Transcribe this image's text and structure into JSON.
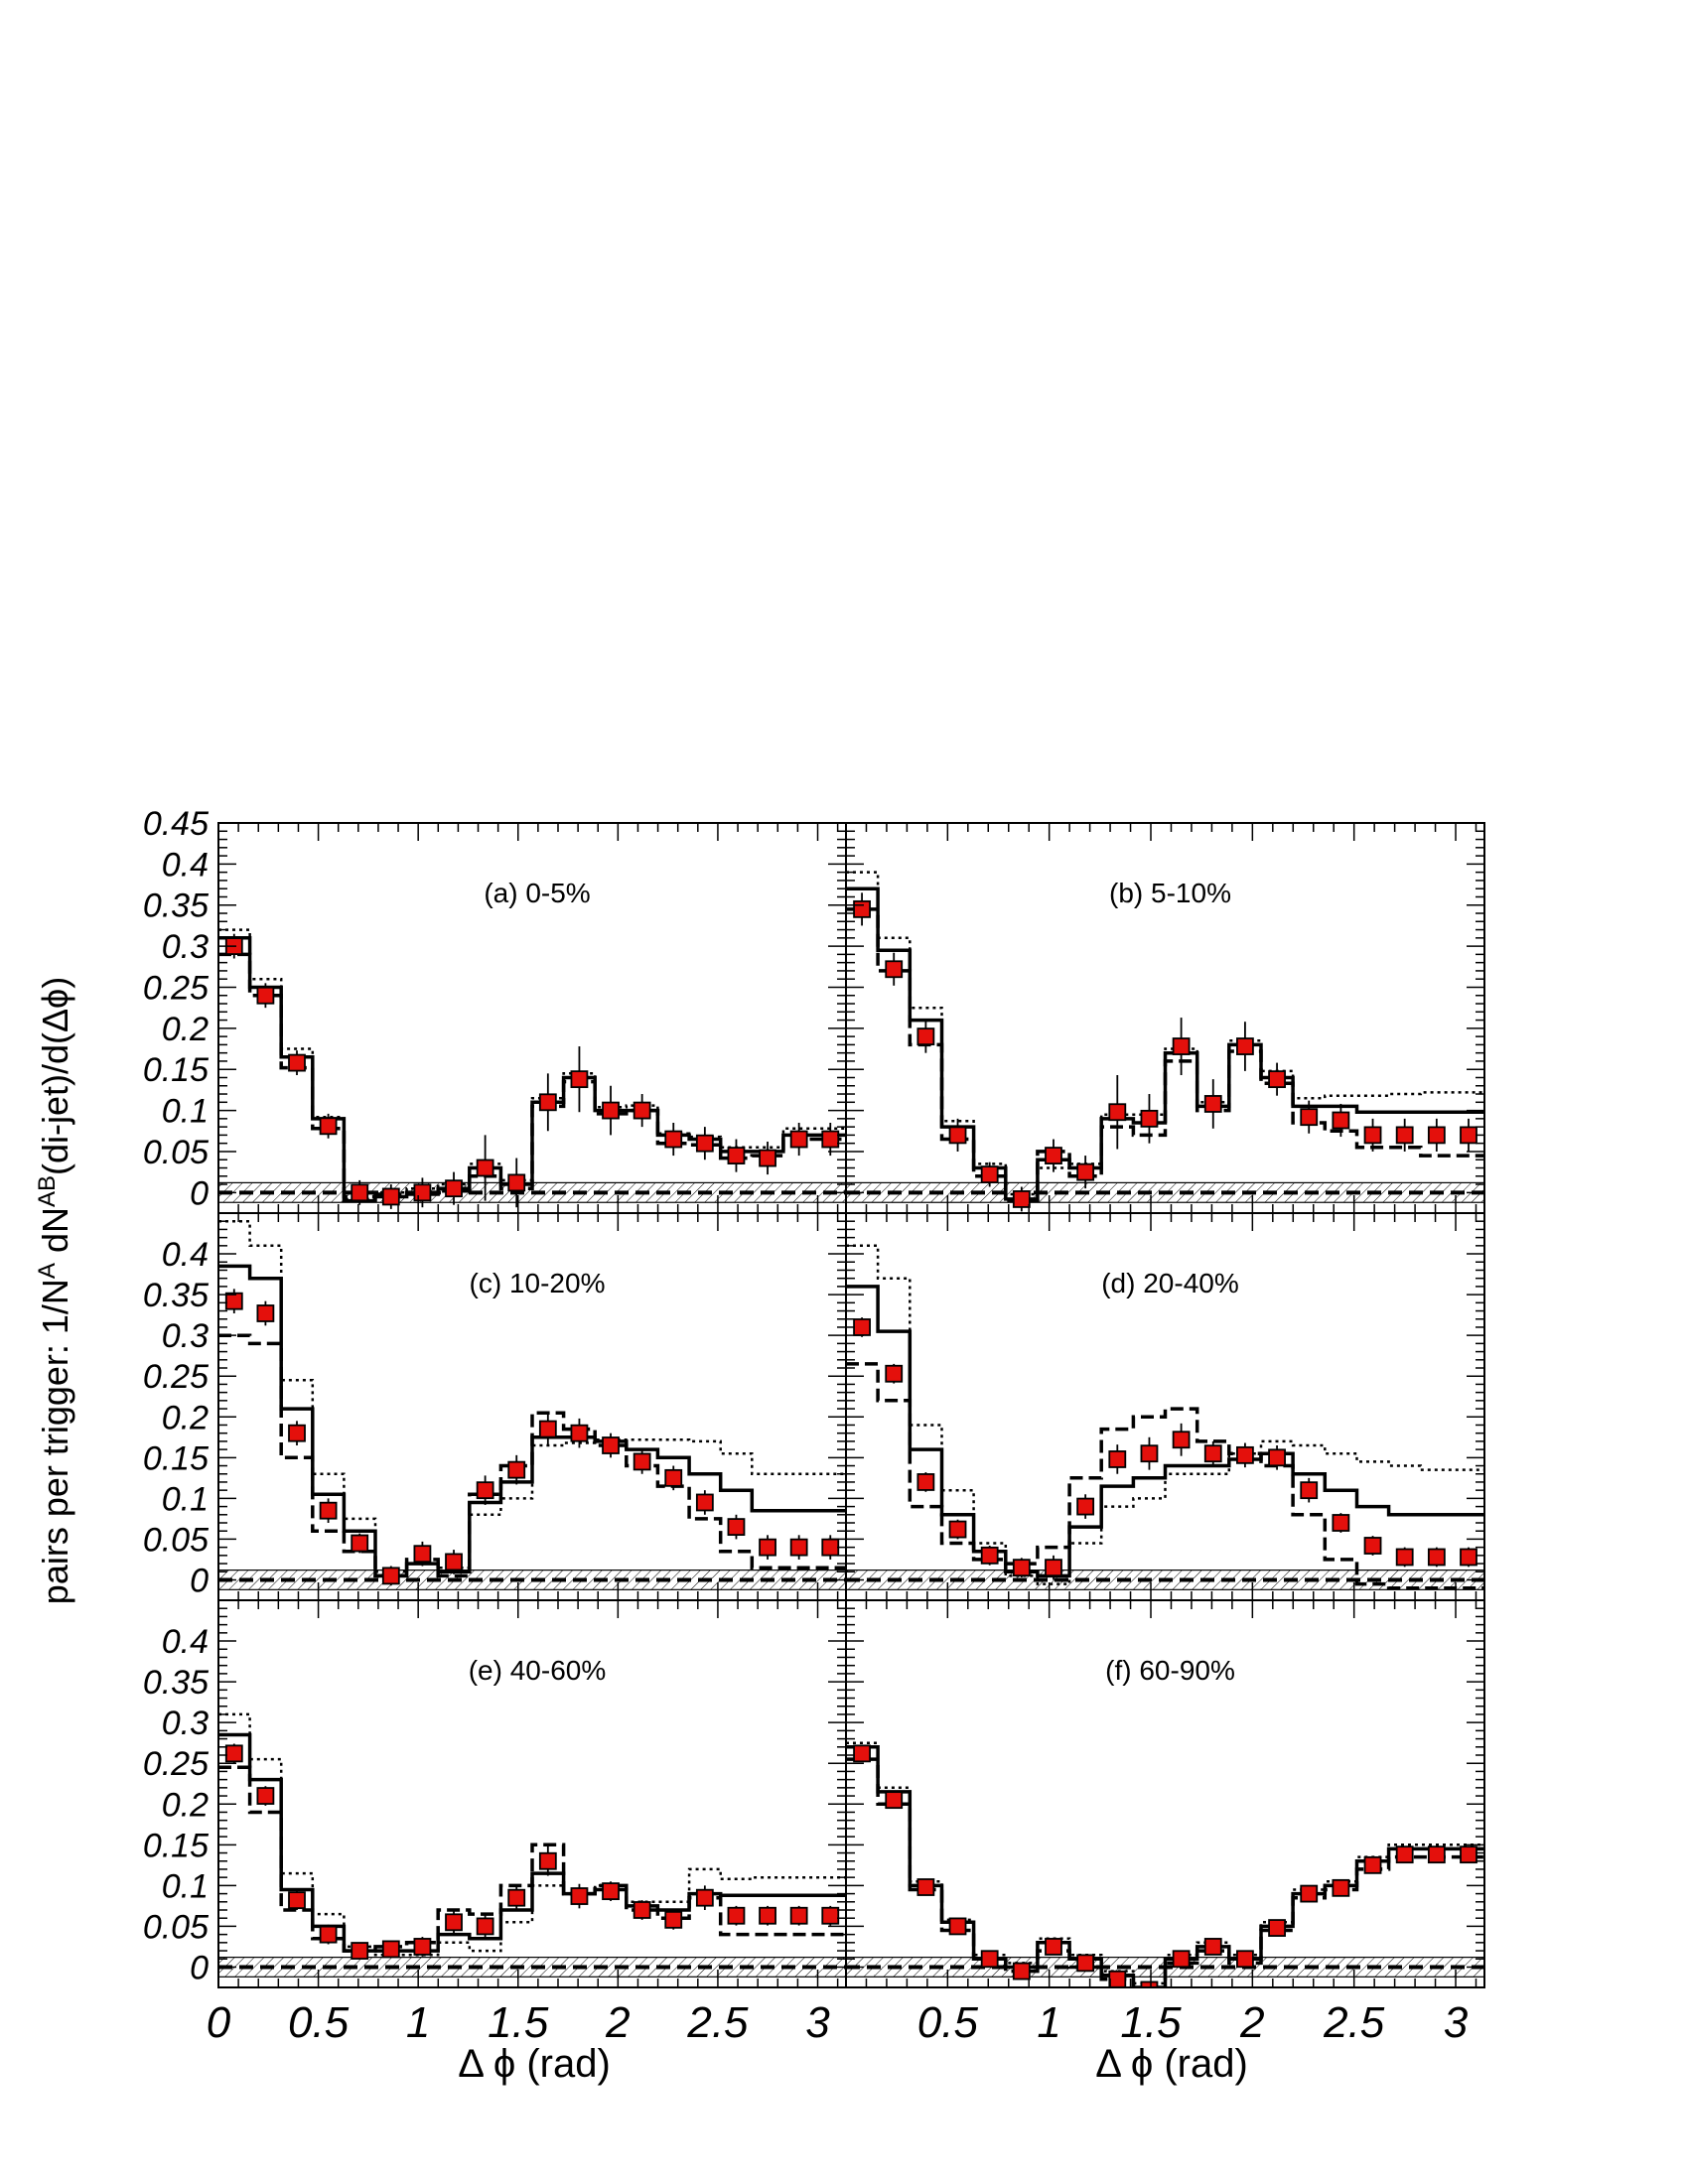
{
  "figure": {
    "ylabel": "pairs per trigger: 1/N",
    "ylabel_sup1": "A",
    "ylabel_mid": " dN",
    "ylabel_sup2": "AB",
    "ylabel_end": "(di-jet)/d(Δϕ)",
    "xlabel": "Δ ϕ (rad)",
    "x_ticks": [
      "0",
      "0.5",
      "1",
      "1.5",
      "2",
      "2.5",
      "3"
    ],
    "x_ticks_right": [
      "0.5",
      "1",
      "1.5",
      "2",
      "2.5",
      "3"
    ],
    "y_ticks_top": [
      "0.45",
      "0.4",
      "0.35",
      "0.3",
      "0.25",
      "0.2",
      "0.15",
      "0.1",
      "0.05",
      "0"
    ],
    "y_ticks": [
      "0.4",
      "0.35",
      "0.3",
      "0.25",
      "0.2",
      "0.15",
      "0.1",
      "0.05",
      "0"
    ],
    "colors": {
      "marker": "#e4100c",
      "line": "#000000"
    }
  },
  "chart_data": [
    {
      "type": "scatter",
      "label": "(a) 0-5%",
      "xlim": [
        0,
        3.14159
      ],
      "ylim": [
        -0.025,
        0.45
      ],
      "x": [
        0.0785,
        0.2356,
        0.3927,
        0.5498,
        0.7069,
        0.864,
        1.0211,
        1.1782,
        1.3353,
        1.4924,
        1.6495,
        1.8066,
        1.9637,
        2.1208,
        2.2779,
        2.435,
        2.5921,
        2.7492,
        2.9063,
        3.0634
      ],
      "series": [
        {
          "name": "data",
          "values": [
            0.3,
            0.24,
            0.158,
            0.081,
            0.0,
            -0.005,
            0.0,
            0.005,
            0.03,
            0.012,
            0.11,
            0.138,
            0.1,
            0.1,
            0.065,
            0.06,
            0.045,
            0.042,
            0.065,
            0.065
          ],
          "errors": [
            0.015,
            0.015,
            0.015,
            0.015,
            0.015,
            0.015,
            0.018,
            0.02,
            0.04,
            0.03,
            0.035,
            0.04,
            0.03,
            0.02,
            0.02,
            0.02,
            0.02,
            0.02,
            0.02,
            0.02
          ]
        },
        {
          "name": "solid",
          "values": [
            0.31,
            0.25,
            0.165,
            0.09,
            -0.01,
            -0.005,
            0.0,
            0.005,
            0.03,
            0.01,
            0.11,
            0.14,
            0.1,
            0.1,
            0.07,
            0.065,
            0.05,
            0.05,
            0.07,
            0.07
          ]
        },
        {
          "name": "dashed",
          "values": [
            0.29,
            0.24,
            0.152,
            0.078,
            -0.005,
            -0.002,
            -0.002,
            0.002,
            0.02,
            0.005,
            0.105,
            0.135,
            0.096,
            0.1,
            0.06,
            0.058,
            0.042,
            0.045,
            0.065,
            0.065
          ]
        },
        {
          "name": "dotted",
          "values": [
            0.32,
            0.26,
            0.175,
            0.092,
            -0.008,
            0.0,
            0.005,
            0.01,
            0.035,
            0.015,
            0.115,
            0.145,
            0.104,
            0.106,
            0.072,
            0.068,
            0.055,
            0.055,
            0.078,
            0.078
          ]
        }
      ]
    },
    {
      "type": "scatter",
      "label": "(b) 5-10%",
      "xlim": [
        0,
        3.14159
      ],
      "ylim": [
        -0.025,
        0.45
      ],
      "x": [
        0.0785,
        0.2356,
        0.3927,
        0.5498,
        0.7069,
        0.864,
        1.0211,
        1.1782,
        1.3353,
        1.4924,
        1.6495,
        1.8066,
        1.9637,
        2.1208,
        2.2779,
        2.435,
        2.5921,
        2.7492,
        2.9063,
        3.0634
      ],
      "series": [
        {
          "name": "data",
          "values": [
            0.345,
            0.272,
            0.19,
            0.07,
            0.022,
            -0.008,
            0.045,
            0.025,
            0.098,
            0.09,
            0.178,
            0.108,
            0.178,
            0.138,
            0.092,
            0.088,
            0.07,
            0.07,
            0.07,
            0.07
          ],
          "errors": [
            0.02,
            0.02,
            0.02,
            0.02,
            0.015,
            0.015,
            0.02,
            0.02,
            0.045,
            0.03,
            0.035,
            0.03,
            0.03,
            0.02,
            0.02,
            0.02,
            0.02,
            0.02,
            0.02,
            0.02
          ]
        },
        {
          "name": "solid",
          "values": [
            0.37,
            0.295,
            0.21,
            0.08,
            0.03,
            -0.008,
            0.04,
            0.03,
            0.09,
            0.085,
            0.17,
            0.105,
            0.18,
            0.14,
            0.105,
            0.105,
            0.098,
            0.098,
            0.098,
            0.098
          ]
        },
        {
          "name": "dashed",
          "values": [
            0.345,
            0.27,
            0.18,
            0.065,
            0.02,
            -0.01,
            0.05,
            0.02,
            0.08,
            0.07,
            0.16,
            0.1,
            0.172,
            0.133,
            0.085,
            0.075,
            0.055,
            0.055,
            0.045,
            0.045
          ]
        },
        {
          "name": "dotted",
          "values": [
            0.39,
            0.31,
            0.225,
            0.087,
            0.035,
            -0.002,
            0.03,
            0.035,
            0.095,
            0.095,
            0.175,
            0.11,
            0.185,
            0.148,
            0.115,
            0.118,
            0.118,
            0.12,
            0.122,
            0.122
          ]
        }
      ]
    },
    {
      "type": "scatter",
      "label": "(c) 10-20%",
      "xlim": [
        0,
        3.14159
      ],
      "ylim": [
        -0.025,
        0.45
      ],
      "x": [
        0.0785,
        0.2356,
        0.3927,
        0.5498,
        0.7069,
        0.864,
        1.0211,
        1.1782,
        1.3353,
        1.4924,
        1.6495,
        1.8066,
        1.9637,
        2.1208,
        2.2779,
        2.435,
        2.5921,
        2.7492,
        2.9063,
        3.0634
      ],
      "series": [
        {
          "name": "data",
          "values": [
            0.342,
            0.327,
            0.18,
            0.085,
            0.045,
            0.005,
            0.032,
            0.022,
            0.11,
            0.135,
            0.185,
            0.18,
            0.165,
            0.145,
            0.125,
            0.095,
            0.065,
            0.04,
            0.04,
            0.04
          ],
          "errors": [
            0.015,
            0.015,
            0.015,
            0.015,
            0.012,
            0.012,
            0.015,
            0.015,
            0.018,
            0.018,
            0.02,
            0.018,
            0.015,
            0.015,
            0.015,
            0.015,
            0.015,
            0.015,
            0.015,
            0.015
          ]
        },
        {
          "name": "solid",
          "values": [
            0.385,
            0.37,
            0.21,
            0.105,
            0.06,
            0.005,
            0.02,
            0.01,
            0.095,
            0.12,
            0.175,
            0.175,
            0.17,
            0.16,
            0.15,
            0.13,
            0.11,
            0.085,
            0.085,
            0.085
          ]
        },
        {
          "name": "dashed",
          "values": [
            0.3,
            0.29,
            0.15,
            0.06,
            0.035,
            0.005,
            0.025,
            0.005,
            0.105,
            0.14,
            0.205,
            0.185,
            0.165,
            0.14,
            0.115,
            0.075,
            0.035,
            0.015,
            0.015,
            0.015
          ]
        },
        {
          "name": "dotted",
          "values": [
            0.44,
            0.41,
            0.245,
            0.13,
            0.075,
            0.01,
            0.02,
            0.015,
            0.08,
            0.1,
            0.165,
            0.168,
            0.172,
            0.172,
            0.172,
            0.17,
            0.155,
            0.13,
            0.13,
            0.13
          ]
        }
      ]
    },
    {
      "type": "scatter",
      "label": "(d) 20-40%",
      "xlim": [
        0,
        3.14159
      ],
      "ylim": [
        -0.025,
        0.45
      ],
      "x": [
        0.0785,
        0.2356,
        0.3927,
        0.5498,
        0.7069,
        0.864,
        1.0211,
        1.1782,
        1.3353,
        1.4924,
        1.6495,
        1.8066,
        1.9637,
        2.1208,
        2.2779,
        2.435,
        2.5921,
        2.7492,
        2.9063,
        3.0634
      ],
      "series": [
        {
          "name": "data",
          "values": [
            0.31,
            0.253,
            0.12,
            0.062,
            0.03,
            0.015,
            0.015,
            0.09,
            0.148,
            0.155,
            0.172,
            0.155,
            0.153,
            0.15,
            0.11,
            0.07,
            0.042,
            0.028,
            0.028,
            0.028
          ],
          "errors": [
            0.012,
            0.012,
            0.012,
            0.012,
            0.012,
            0.012,
            0.015,
            0.015,
            0.018,
            0.02,
            0.02,
            0.015,
            0.015,
            0.015,
            0.015,
            0.012,
            0.012,
            0.012,
            0.012,
            0.012
          ]
        },
        {
          "name": "solid",
          "values": [
            0.36,
            0.305,
            0.16,
            0.08,
            0.035,
            0.01,
            0.005,
            0.065,
            0.115,
            0.125,
            0.14,
            0.14,
            0.148,
            0.155,
            0.13,
            0.11,
            0.09,
            0.08,
            0.08,
            0.08
          ]
        },
        {
          "name": "dashed",
          "values": [
            0.265,
            0.22,
            0.09,
            0.045,
            0.025,
            0.02,
            0.04,
            0.125,
            0.185,
            0.2,
            0.21,
            0.17,
            0.155,
            0.14,
            0.08,
            0.025,
            -0.005,
            -0.01,
            -0.01,
            -0.01
          ]
        },
        {
          "name": "dotted",
          "values": [
            0.41,
            0.37,
            0.19,
            0.11,
            0.045,
            0.005,
            -0.005,
            0.045,
            0.09,
            0.1,
            0.13,
            0.13,
            0.155,
            0.17,
            0.165,
            0.155,
            0.145,
            0.14,
            0.135,
            0.135
          ]
        }
      ]
    },
    {
      "type": "scatter",
      "label": "(e) 40-60%",
      "xlim": [
        0,
        3.14159
      ],
      "ylim": [
        -0.025,
        0.45
      ],
      "x": [
        0.0785,
        0.2356,
        0.3927,
        0.5498,
        0.7069,
        0.864,
        1.0211,
        1.1782,
        1.3353,
        1.4924,
        1.6495,
        1.8066,
        1.9637,
        2.1208,
        2.2779,
        2.435,
        2.5921,
        2.7492,
        2.9063,
        3.0634
      ],
      "series": [
        {
          "name": "data",
          "values": [
            0.262,
            0.21,
            0.082,
            0.04,
            0.02,
            0.022,
            0.025,
            0.055,
            0.05,
            0.085,
            0.13,
            0.087,
            0.093,
            0.07,
            0.058,
            0.085,
            0.063,
            0.063,
            0.063,
            0.063
          ],
          "errors": [
            0.012,
            0.012,
            0.012,
            0.012,
            0.01,
            0.01,
            0.012,
            0.015,
            0.015,
            0.015,
            0.018,
            0.015,
            0.012,
            0.012,
            0.012,
            0.015,
            0.012,
            0.012,
            0.012,
            0.012
          ]
        },
        {
          "name": "solid",
          "values": [
            0.285,
            0.23,
            0.095,
            0.05,
            0.02,
            0.02,
            0.02,
            0.04,
            0.035,
            0.07,
            0.115,
            0.09,
            0.095,
            0.075,
            0.07,
            0.09,
            0.088,
            0.088,
            0.088,
            0.088
          ]
        },
        {
          "name": "dashed",
          "values": [
            0.245,
            0.19,
            0.07,
            0.035,
            0.02,
            0.025,
            0.03,
            0.07,
            0.065,
            0.1,
            0.15,
            0.09,
            0.1,
            0.07,
            0.06,
            0.085,
            0.04,
            0.04,
            0.04,
            0.04
          ]
        },
        {
          "name": "dotted",
          "values": [
            0.31,
            0.255,
            0.115,
            0.065,
            0.025,
            0.015,
            0.015,
            0.03,
            0.02,
            0.055,
            0.1,
            0.09,
            0.1,
            0.08,
            0.08,
            0.12,
            0.108,
            0.11,
            0.11,
            0.11
          ]
        }
      ]
    },
    {
      "type": "scatter",
      "label": "(f) 60-90%",
      "xlim": [
        0,
        3.14159
      ],
      "ylim": [
        -0.025,
        0.45
      ],
      "x": [
        0.0785,
        0.2356,
        0.3927,
        0.5498,
        0.7069,
        0.864,
        1.0211,
        1.1782,
        1.3353,
        1.4924,
        1.6495,
        1.8066,
        1.9637,
        2.1208,
        2.2779,
        2.435,
        2.5921,
        2.7492,
        2.9063,
        3.0634
      ],
      "series": [
        {
          "name": "data",
          "values": [
            0.262,
            0.205,
            0.098,
            0.05,
            0.01,
            -0.005,
            0.025,
            0.005,
            -0.015,
            -0.028,
            0.01,
            0.025,
            0.01,
            0.048,
            0.09,
            0.097,
            0.125,
            0.138,
            0.138,
            0.138
          ],
          "errors": [
            0.01,
            0.01,
            0.01,
            0.01,
            0.008,
            0.008,
            0.01,
            0.01,
            0.01,
            0.01,
            0.01,
            0.01,
            0.01,
            0.01,
            0.01,
            0.01,
            0.01,
            0.01,
            0.01,
            0.01
          ]
        },
        {
          "name": "solid",
          "values": [
            0.27,
            0.215,
            0.1,
            0.055,
            0.01,
            0.0,
            0.03,
            0.01,
            -0.01,
            -0.025,
            0.01,
            0.025,
            0.01,
            0.05,
            0.09,
            0.1,
            0.13,
            0.145,
            0.145,
            0.145
          ]
        },
        {
          "name": "dashed",
          "values": [
            0.255,
            0.2,
            0.095,
            0.045,
            0.01,
            -0.005,
            0.02,
            0.0,
            -0.015,
            -0.03,
            0.005,
            0.02,
            0.005,
            0.045,
            0.085,
            0.095,
            0.12,
            0.135,
            0.135,
            0.135
          ]
        },
        {
          "name": "dotted",
          "values": [
            0.275,
            0.22,
            0.105,
            0.058,
            0.015,
            0.005,
            0.035,
            0.015,
            -0.005,
            -0.02,
            0.015,
            0.03,
            0.015,
            0.055,
            0.095,
            0.105,
            0.135,
            0.15,
            0.15,
            0.15
          ]
        }
      ]
    }
  ]
}
